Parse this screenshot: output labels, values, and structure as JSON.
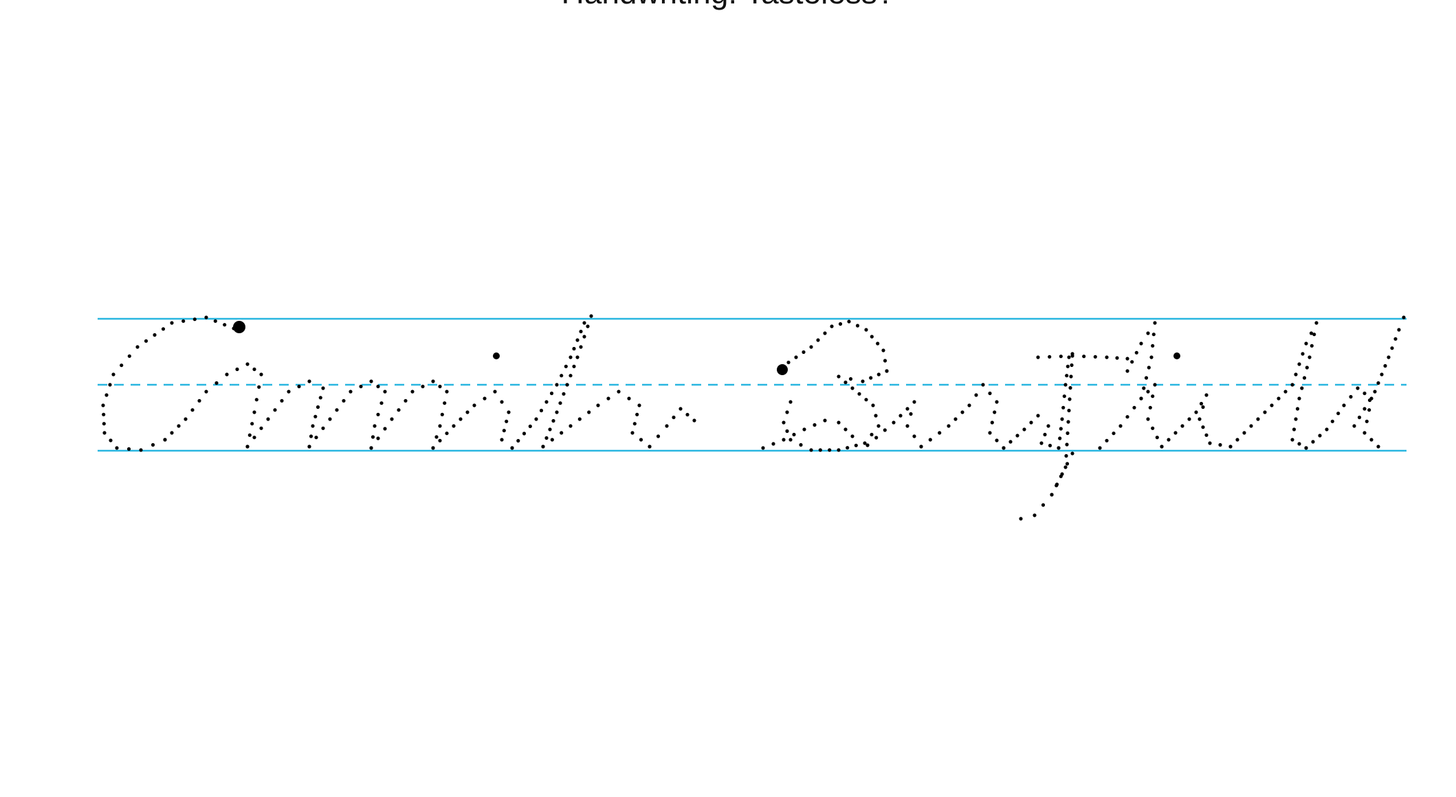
{
  "title": "Handwriting: Tasteless?",
  "guides": {
    "color": "#29b6e0"
  },
  "ink": {
    "color": "#000000"
  },
  "words": [
    {
      "text": "Chandler"
    },
    {
      "text": "Benefit"
    }
  ]
}
